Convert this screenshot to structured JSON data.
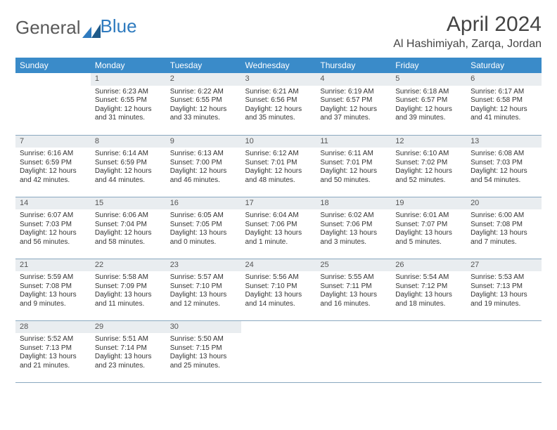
{
  "brand": {
    "part1": "General",
    "part2": "Blue"
  },
  "title": "April 2024",
  "location": "Al Hashimiyah, Zarqa, Jordan",
  "colors": {
    "header_bg": "#3a8bc9",
    "header_text": "#ffffff",
    "daynum_bg": "#e9edf0",
    "border": "#8aa8c0",
    "text": "#333333",
    "brand_gray": "#5a5a5a",
    "brand_blue": "#2f7bbf",
    "page_bg": "#ffffff"
  },
  "weekdays": [
    "Sunday",
    "Monday",
    "Tuesday",
    "Wednesday",
    "Thursday",
    "Friday",
    "Saturday"
  ],
  "weeks": [
    [
      null,
      {
        "n": "1",
        "sr": "Sunrise: 6:23 AM",
        "ss": "Sunset: 6:55 PM",
        "d1": "Daylight: 12 hours",
        "d2": "and 31 minutes."
      },
      {
        "n": "2",
        "sr": "Sunrise: 6:22 AM",
        "ss": "Sunset: 6:55 PM",
        "d1": "Daylight: 12 hours",
        "d2": "and 33 minutes."
      },
      {
        "n": "3",
        "sr": "Sunrise: 6:21 AM",
        "ss": "Sunset: 6:56 PM",
        "d1": "Daylight: 12 hours",
        "d2": "and 35 minutes."
      },
      {
        "n": "4",
        "sr": "Sunrise: 6:19 AM",
        "ss": "Sunset: 6:57 PM",
        "d1": "Daylight: 12 hours",
        "d2": "and 37 minutes."
      },
      {
        "n": "5",
        "sr": "Sunrise: 6:18 AM",
        "ss": "Sunset: 6:57 PM",
        "d1": "Daylight: 12 hours",
        "d2": "and 39 minutes."
      },
      {
        "n": "6",
        "sr": "Sunrise: 6:17 AM",
        "ss": "Sunset: 6:58 PM",
        "d1": "Daylight: 12 hours",
        "d2": "and 41 minutes."
      }
    ],
    [
      {
        "n": "7",
        "sr": "Sunrise: 6:16 AM",
        "ss": "Sunset: 6:59 PM",
        "d1": "Daylight: 12 hours",
        "d2": "and 42 minutes."
      },
      {
        "n": "8",
        "sr": "Sunrise: 6:14 AM",
        "ss": "Sunset: 6:59 PM",
        "d1": "Daylight: 12 hours",
        "d2": "and 44 minutes."
      },
      {
        "n": "9",
        "sr": "Sunrise: 6:13 AM",
        "ss": "Sunset: 7:00 PM",
        "d1": "Daylight: 12 hours",
        "d2": "and 46 minutes."
      },
      {
        "n": "10",
        "sr": "Sunrise: 6:12 AM",
        "ss": "Sunset: 7:01 PM",
        "d1": "Daylight: 12 hours",
        "d2": "and 48 minutes."
      },
      {
        "n": "11",
        "sr": "Sunrise: 6:11 AM",
        "ss": "Sunset: 7:01 PM",
        "d1": "Daylight: 12 hours",
        "d2": "and 50 minutes."
      },
      {
        "n": "12",
        "sr": "Sunrise: 6:10 AM",
        "ss": "Sunset: 7:02 PM",
        "d1": "Daylight: 12 hours",
        "d2": "and 52 minutes."
      },
      {
        "n": "13",
        "sr": "Sunrise: 6:08 AM",
        "ss": "Sunset: 7:03 PM",
        "d1": "Daylight: 12 hours",
        "d2": "and 54 minutes."
      }
    ],
    [
      {
        "n": "14",
        "sr": "Sunrise: 6:07 AM",
        "ss": "Sunset: 7:03 PM",
        "d1": "Daylight: 12 hours",
        "d2": "and 56 minutes."
      },
      {
        "n": "15",
        "sr": "Sunrise: 6:06 AM",
        "ss": "Sunset: 7:04 PM",
        "d1": "Daylight: 12 hours",
        "d2": "and 58 minutes."
      },
      {
        "n": "16",
        "sr": "Sunrise: 6:05 AM",
        "ss": "Sunset: 7:05 PM",
        "d1": "Daylight: 13 hours",
        "d2": "and 0 minutes."
      },
      {
        "n": "17",
        "sr": "Sunrise: 6:04 AM",
        "ss": "Sunset: 7:06 PM",
        "d1": "Daylight: 13 hours",
        "d2": "and 1 minute."
      },
      {
        "n": "18",
        "sr": "Sunrise: 6:02 AM",
        "ss": "Sunset: 7:06 PM",
        "d1": "Daylight: 13 hours",
        "d2": "and 3 minutes."
      },
      {
        "n": "19",
        "sr": "Sunrise: 6:01 AM",
        "ss": "Sunset: 7:07 PM",
        "d1": "Daylight: 13 hours",
        "d2": "and 5 minutes."
      },
      {
        "n": "20",
        "sr": "Sunrise: 6:00 AM",
        "ss": "Sunset: 7:08 PM",
        "d1": "Daylight: 13 hours",
        "d2": "and 7 minutes."
      }
    ],
    [
      {
        "n": "21",
        "sr": "Sunrise: 5:59 AM",
        "ss": "Sunset: 7:08 PM",
        "d1": "Daylight: 13 hours",
        "d2": "and 9 minutes."
      },
      {
        "n": "22",
        "sr": "Sunrise: 5:58 AM",
        "ss": "Sunset: 7:09 PM",
        "d1": "Daylight: 13 hours",
        "d2": "and 11 minutes."
      },
      {
        "n": "23",
        "sr": "Sunrise: 5:57 AM",
        "ss": "Sunset: 7:10 PM",
        "d1": "Daylight: 13 hours",
        "d2": "and 12 minutes."
      },
      {
        "n": "24",
        "sr": "Sunrise: 5:56 AM",
        "ss": "Sunset: 7:10 PM",
        "d1": "Daylight: 13 hours",
        "d2": "and 14 minutes."
      },
      {
        "n": "25",
        "sr": "Sunrise: 5:55 AM",
        "ss": "Sunset: 7:11 PM",
        "d1": "Daylight: 13 hours",
        "d2": "and 16 minutes."
      },
      {
        "n": "26",
        "sr": "Sunrise: 5:54 AM",
        "ss": "Sunset: 7:12 PM",
        "d1": "Daylight: 13 hours",
        "d2": "and 18 minutes."
      },
      {
        "n": "27",
        "sr": "Sunrise: 5:53 AM",
        "ss": "Sunset: 7:13 PM",
        "d1": "Daylight: 13 hours",
        "d2": "and 19 minutes."
      }
    ],
    [
      {
        "n": "28",
        "sr": "Sunrise: 5:52 AM",
        "ss": "Sunset: 7:13 PM",
        "d1": "Daylight: 13 hours",
        "d2": "and 21 minutes."
      },
      {
        "n": "29",
        "sr": "Sunrise: 5:51 AM",
        "ss": "Sunset: 7:14 PM",
        "d1": "Daylight: 13 hours",
        "d2": "and 23 minutes."
      },
      {
        "n": "30",
        "sr": "Sunrise: 5:50 AM",
        "ss": "Sunset: 7:15 PM",
        "d1": "Daylight: 13 hours",
        "d2": "and 25 minutes."
      },
      null,
      null,
      null,
      null
    ]
  ]
}
